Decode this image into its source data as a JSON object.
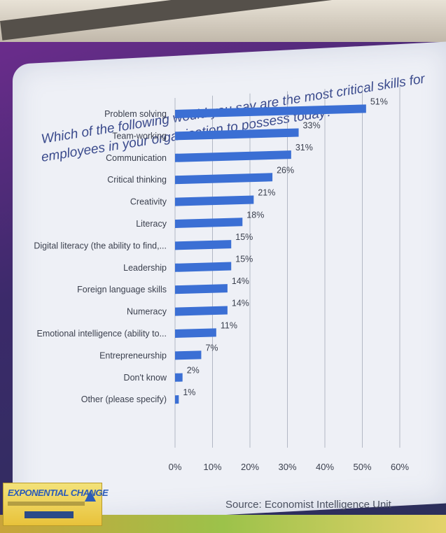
{
  "chart_data": {
    "type": "bar",
    "orientation": "horizontal",
    "title": "Which of the following would you say are the most critical skills for employees in your organisation to possess today?",
    "title_lines": [
      "Which of the following would you say are the most critical skills for",
      "employees in your organisation to possess today?"
    ],
    "categories": [
      "Problem solving",
      "Team-working",
      "Communication",
      "Critical thinking",
      "Creativity",
      "Literacy",
      "Digital literacy (the ability to find,...",
      "Leadership",
      "Foreign language skills",
      "Numeracy",
      "Emotional intelligence (ability to...",
      "Entrepreneurship",
      "Don't know",
      "Other (please specify)"
    ],
    "values": [
      51,
      33,
      31,
      26,
      21,
      18,
      15,
      15,
      14,
      14,
      11,
      7,
      2,
      1
    ],
    "value_labels": [
      "51%",
      "33%",
      "31%",
      "26%",
      "21%",
      "18%",
      "15%",
      "15%",
      "14%",
      "14%",
      "11%",
      "7%",
      "2%",
      "1%"
    ],
    "xlim": [
      0,
      60
    ],
    "x_ticks": [
      "0%",
      "10%",
      "20%",
      "30%",
      "40%",
      "50%",
      "60%"
    ],
    "grid": true,
    "bar_color": "#3b6fd4",
    "grid_color": "#9aa0b0",
    "source": "Source: Economist Intelligence Unit"
  },
  "logo": {
    "text": "EXPONENTIAL CHANGE"
  }
}
